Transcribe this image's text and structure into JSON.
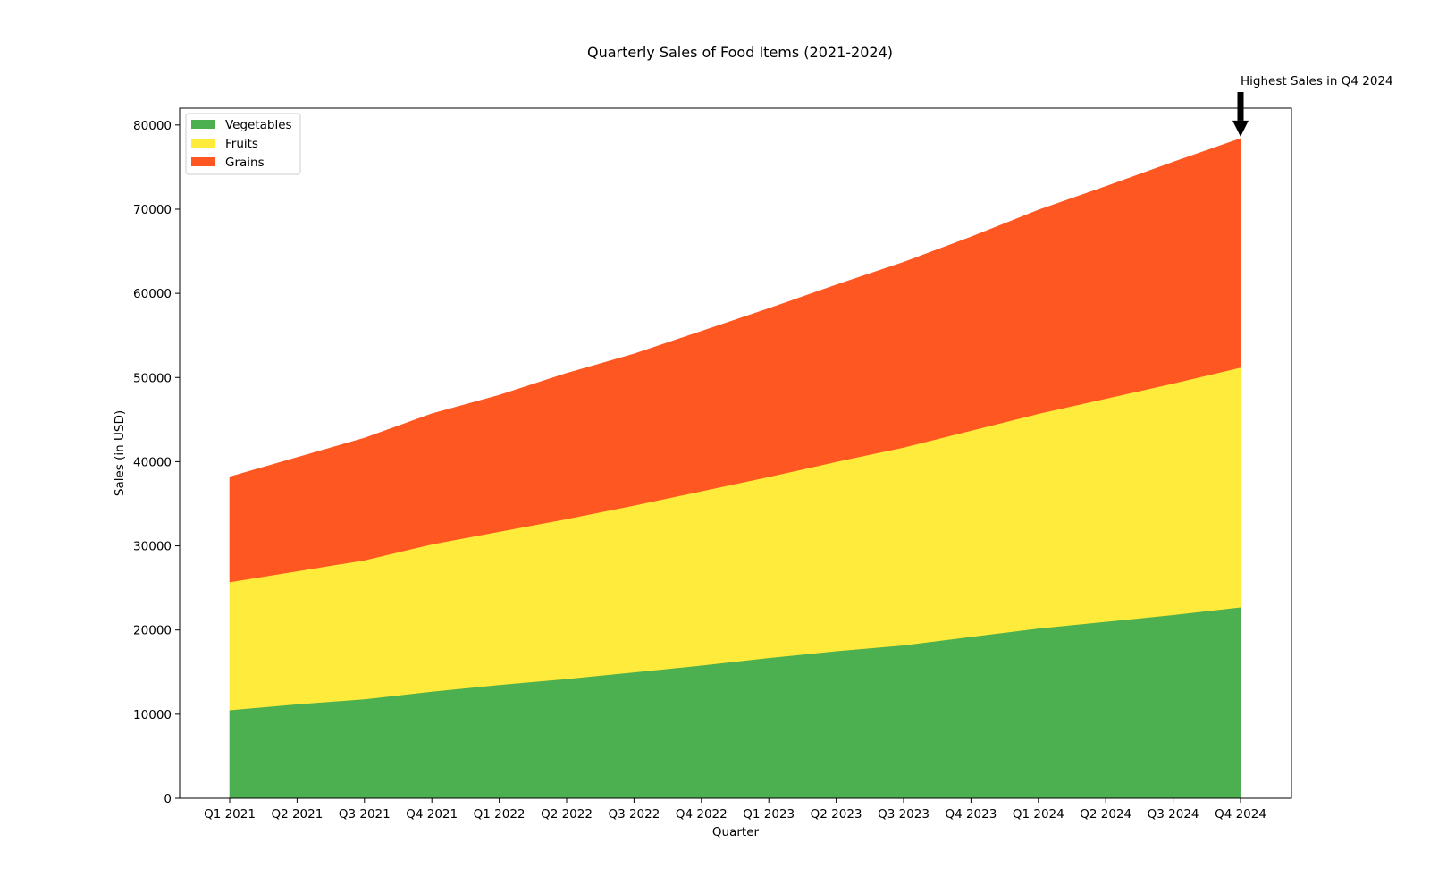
{
  "chart_data": {
    "type": "area",
    "stacked": true,
    "title": "Quarterly Sales of Food Items (2021-2024)",
    "xlabel": "Quarter",
    "ylabel": "Sales (in USD)",
    "ylim": [
      0,
      82000
    ],
    "yticks": [
      0,
      10000,
      20000,
      30000,
      40000,
      50000,
      60000,
      70000,
      80000
    ],
    "grid": false,
    "legend_position": "upper-left",
    "categories": [
      "Q1 2021",
      "Q2 2021",
      "Q3 2021",
      "Q4 2021",
      "Q1 2022",
      "Q2 2022",
      "Q3 2022",
      "Q4 2022",
      "Q1 2023",
      "Q2 2023",
      "Q3 2023",
      "Q4 2023",
      "Q1 2024",
      "Q2 2024",
      "Q3 2024",
      "Q4 2024"
    ],
    "series": [
      {
        "name": "Vegetables",
        "color": "#4caf50",
        "values": [
          10500,
          11200,
          11800,
          12700,
          13500,
          14200,
          15000,
          15800,
          16700,
          17500,
          18200,
          19200,
          20200,
          21000,
          21800,
          22700
        ]
      },
      {
        "name": "Fruits",
        "color": "#ffeb3b",
        "values": [
          15200,
          15800,
          16500,
          17500,
          18200,
          19000,
          19800,
          20700,
          21500,
          22500,
          23500,
          24500,
          25500,
          26500,
          27500,
          28500
        ]
      },
      {
        "name": "Grains",
        "color": "#ff5722",
        "values": [
          12500,
          13500,
          14500,
          15500,
          16200,
          17300,
          18000,
          19000,
          20000,
          21000,
          22000,
          23000,
          24200,
          25200,
          26300,
          27200
        ]
      }
    ],
    "annotation": {
      "text": "Highest Sales in Q4 2024",
      "category": "Q4 2024",
      "value": 78400,
      "arrow": "down"
    }
  }
}
